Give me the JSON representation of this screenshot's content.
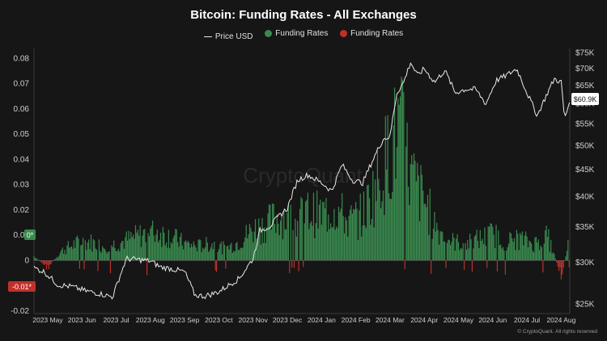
{
  "chart_title": "Bitcoin: Funding Rates - All Exchanges",
  "footer": "© CryptoQuant. All rights reserved",
  "watermark": "CryptoQuant",
  "legend": [
    {
      "label": "Price USD",
      "kind": "line",
      "color": "#e8e8e8"
    },
    {
      "label": "Funding Rates",
      "kind": "dot",
      "color": "#3a8a4f"
    },
    {
      "label": "Funding Rates",
      "kind": "dot",
      "color": "#c0302b"
    }
  ],
  "colors": {
    "positive": "#3a8a4f",
    "negative": "#c0302b",
    "price": "#e8e8e8",
    "background": "#161616"
  },
  "chart_data": {
    "type": "bar+line",
    "title": "Bitcoin: Funding Rates - All Exchanges",
    "x_tick_labels": [
      "2023 May",
      "2023 Jun",
      "2023 Jul",
      "2023 Aug",
      "2023 Sep",
      "2023 Oct",
      "2023 Nov",
      "2023 Dec",
      "2024 Jan",
      "2024 Feb",
      "2024 Mar",
      "2024 Apr",
      "2024 May",
      "2024 Jun",
      "2024 Jul",
      "2024 Aug"
    ],
    "x_range_months": [
      3.6,
      19.25
    ],
    "left_axis": {
      "ticks": [
        "0.08",
        "0.07",
        "0.06",
        "0.05",
        "0.04",
        "0.03",
        "0.02",
        "0.01",
        "0",
        "-0.01",
        "-0.02"
      ],
      "ylim": [
        -0.021,
        0.084
      ]
    },
    "right_axis": {
      "ticks": [
        "$75K",
        "$70K",
        "$65K",
        "$60K",
        "$55K",
        "$50K",
        "$45K",
        "$40K",
        "$35K",
        "$30K",
        "$25K"
      ],
      "scale": "log",
      "ylim": [
        24000,
        76500
      ]
    },
    "markers": {
      "funding_positive": "0*",
      "funding_negative": "-0.01*",
      "price_last": "$60.9K"
    },
    "funding_rates": {
      "x_month": [
        3.6,
        4.0,
        4.4,
        4.8,
        5.2,
        5.6,
        6.0,
        6.4,
        6.8,
        7.2,
        7.6,
        8.0,
        8.4,
        8.8,
        9.2,
        9.6,
        10.0,
        10.4,
        10.8,
        11.2,
        11.6,
        12.0,
        12.4,
        12.8,
        13.2,
        13.6,
        14.0,
        14.3,
        14.6,
        15.0,
        15.4,
        15.8,
        16.2,
        16.6,
        17.0,
        17.4,
        17.8,
        18.2,
        18.6,
        19.0,
        19.2
      ],
      "rate": [
        0.002,
        -0.003,
        0.004,
        0.007,
        0.008,
        0.006,
        0.007,
        0.009,
        0.011,
        0.012,
        0.01,
        0.007,
        0.006,
        0.007,
        0.005,
        0.008,
        0.013,
        0.015,
        0.019,
        0.016,
        0.02,
        0.019,
        0.022,
        0.016,
        0.019,
        0.031,
        0.046,
        0.055,
        0.035,
        0.025,
        0.013,
        0.008,
        0.007,
        0.009,
        0.011,
        0.008,
        0.009,
        0.007,
        0.01,
        -0.006,
        0.006
      ]
    },
    "price": {
      "x_month": [
        3.6,
        3.9,
        4.3,
        4.7,
        5.1,
        5.5,
        5.9,
        6.3,
        6.6,
        7.0,
        7.3,
        7.6,
        8.0,
        8.3,
        8.6,
        9.0,
        9.3,
        9.6,
        10.0,
        10.2,
        10.5,
        10.8,
        11.0,
        11.3,
        11.6,
        12.0,
        12.3,
        12.6,
        12.9,
        13.2,
        13.5,
        13.8,
        14.0,
        14.2,
        14.4,
        14.6,
        14.8,
        15.0,
        15.3,
        15.6,
        15.9,
        16.2,
        16.5,
        16.8,
        17.1,
        17.4,
        17.7,
        18.0,
        18.3,
        18.6,
        18.8,
        19.0,
        19.1,
        19.25
      ],
      "usd": [
        29300,
        28800,
        27200,
        27000,
        26500,
        26200,
        25800,
        30500,
        30400,
        30200,
        29400,
        29200,
        28800,
        26000,
        25900,
        26400,
        27200,
        28000,
        30500,
        34500,
        35200,
        37000,
        38000,
        43000,
        44000,
        42500,
        41000,
        46000,
        43000,
        42500,
        47000,
        51500,
        52000,
        63000,
        66000,
        72000,
        68000,
        70000,
        66000,
        69500,
        63000,
        64000,
        64000,
        60000,
        66500,
        68000,
        70000,
        63000,
        57000,
        63000,
        67000,
        66000,
        56000,
        60900
      ]
    }
  }
}
